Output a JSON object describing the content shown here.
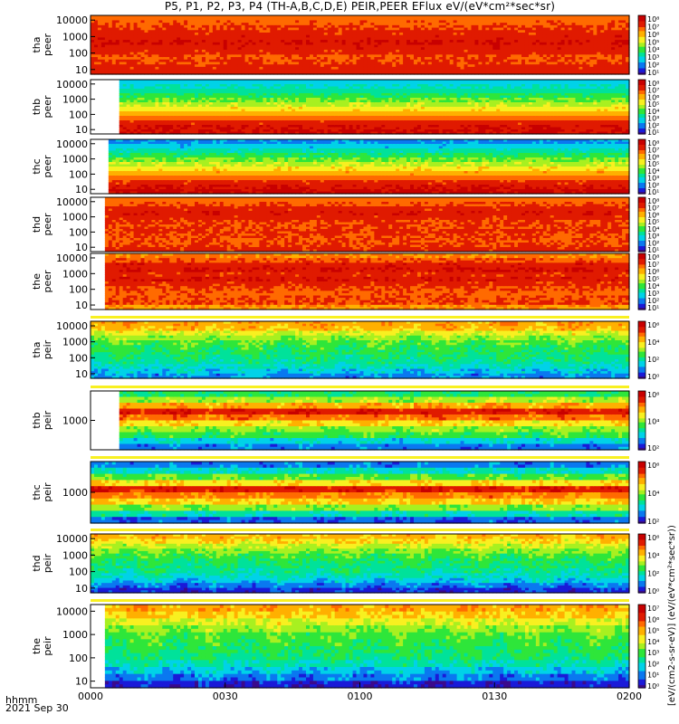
{
  "title": "P5, P1, P2, P3, P4 (TH-A,B,C,D,E) PEIR,PEER EFlux eV/(eV*cm²*sec*sr)",
  "footer": {
    "time_label": "hhmm",
    "date_label": "2021 Sep 30"
  },
  "colorbar_label": "[eV/(cm2-s-sr-eV)] (eV/(eV*cm²*sec*sr))",
  "colors": {
    "spectrum": [
      "#3b0a8c",
      "#1a1ad8",
      "#0a78f0",
      "#00d2e8",
      "#00e29a",
      "#2ee63a",
      "#a8f020",
      "#f8f020",
      "#ffb000",
      "#ff6a00",
      "#e01a00",
      "#c80000"
    ],
    "fill_flag": "#f8f020"
  },
  "chart_data": {
    "type": "heatmap",
    "x_axis": {
      "ticks": [
        "0000",
        "0030",
        "0100",
        "0130",
        "0200"
      ],
      "start": "0000",
      "end": "0200"
    },
    "panels": [
      {
        "id": "tha_peer",
        "probe": "tha",
        "species": "peer",
        "ylabel": [
          "tha",
          "peer"
        ],
        "yticks": [
          "10000",
          "1000",
          "100",
          "10"
        ],
        "cbar_ticks": [
          "10⁸",
          "10⁷",
          "10⁶",
          "10⁵",
          "10⁴",
          "10³",
          "10²",
          "10¹"
        ],
        "data_start": 0.0,
        "profile": [
          7.2,
          7.4,
          7.6,
          7.8,
          8.0,
          8.2,
          8.0,
          7.8,
          7.5,
          7.6,
          7.8,
          7.9
        ],
        "noise": 0.5,
        "floor": 0.0
      },
      {
        "id": "thb_peer",
        "probe": "thb",
        "species": "peer",
        "ylabel": [
          "thb",
          "peer"
        ],
        "yticks": [
          "10000",
          "1000",
          "100",
          "10"
        ],
        "cbar_ticks": [
          "10⁸",
          "10⁷",
          "10⁶",
          "10⁵",
          "10⁴",
          "10³",
          "10²",
          "10¹"
        ],
        "data_start": 0.058,
        "profile": [
          3.0,
          3.4,
          3.8,
          4.2,
          4.8,
          5.4,
          6.0,
          6.6,
          7.2,
          7.8,
          8.2,
          8.3
        ],
        "noise": 0.4,
        "floor": 0.0
      },
      {
        "id": "thc_peer",
        "probe": "thc",
        "species": "peer",
        "ylabel": [
          "thc",
          "peer"
        ],
        "yticks": [
          "10000",
          "1000",
          "100",
          "10"
        ],
        "cbar_ticks": [
          "10⁸",
          "10⁷",
          "10⁶",
          "10⁵",
          "10⁴",
          "10³",
          "10²",
          "10¹"
        ],
        "data_start": 0.035,
        "profile": [
          2.6,
          3.0,
          3.6,
          4.2,
          4.8,
          5.4,
          6.0,
          6.6,
          7.2,
          7.8,
          8.2,
          8.4
        ],
        "noise": 0.5,
        "floor": 0.0
      },
      {
        "id": "thd_peer",
        "probe": "thd",
        "species": "peer",
        "ylabel": [
          "thd",
          "peer"
        ],
        "yticks": [
          "10000",
          "1000",
          "100",
          "10"
        ],
        "cbar_ticks": [
          "10⁸",
          "10⁷",
          "10⁶",
          "10⁵",
          "10⁴",
          "10³",
          "10²",
          "10¹"
        ],
        "data_start": 0.028,
        "profile": [
          7.2,
          7.5,
          7.8,
          8.1,
          7.8,
          7.6,
          7.6,
          7.7,
          7.6,
          7.5,
          7.6,
          7.8
        ],
        "noise": 0.5,
        "floor": 0.0
      },
      {
        "id": "the_peer",
        "probe": "the",
        "species": "peer",
        "ylabel": [
          "the",
          "peer"
        ],
        "yticks": [
          "10000",
          "1000",
          "100",
          "10"
        ],
        "cbar_ticks": [
          "10⁸",
          "10⁷",
          "10⁶",
          "10⁵",
          "10⁴",
          "10³",
          "10²",
          "10¹"
        ],
        "data_start": 0.028,
        "profile": [
          7.0,
          7.5,
          8.0,
          8.2,
          7.8,
          8.1,
          7.8,
          7.6,
          7.4,
          7.5,
          7.6,
          6.8
        ],
        "noise": 0.6,
        "floor": 0.0
      },
      {
        "id": "tha_peir",
        "probe": "tha",
        "species": "peir",
        "ylabel": [
          "tha",
          "peir"
        ],
        "yticks": [
          "10000",
          "1000",
          "100",
          "10"
        ],
        "cbar_ticks": [
          "10⁶",
          "10⁴",
          "10²",
          "10⁰"
        ],
        "data_start": 0.0,
        "profile": [
          6.6,
          6.4,
          5.6,
          5.0,
          4.6,
          4.3,
          4.2,
          4.0,
          3.8,
          3.4,
          3.0,
          2.6
        ],
        "noise": 0.8,
        "floor": 0.0
      },
      {
        "id": "thb_peir",
        "probe": "thb",
        "species": "peir",
        "ylabel": [
          "thb",
          "peir"
        ],
        "yticks": [
          "1000"
        ],
        "cbar_ticks": [
          "10⁶",
          "10⁴",
          "10²"
        ],
        "data_start": 0.058,
        "profile": [
          4.2,
          5.2,
          6.6,
          8.0,
          7.2,
          6.0,
          5.0,
          4.4,
          3.2,
          2.4
        ],
        "noise": 0.7,
        "floor": 0.0
      },
      {
        "id": "thc_peir",
        "probe": "thc",
        "species": "peir",
        "ylabel": [
          "thc",
          "peir"
        ],
        "yticks": [
          "1000"
        ],
        "cbar_ticks": [
          "10⁶",
          "10⁴",
          "10²"
        ],
        "data_start": 0.0,
        "profile": [
          2.4,
          3.4,
          4.6,
          6.0,
          8.0,
          7.0,
          6.2,
          5.0,
          3.6,
          2.2
        ],
        "noise": 0.7,
        "floor": 0.0
      },
      {
        "id": "thd_peir",
        "probe": "thd",
        "species": "peir",
        "ylabel": [
          "thd",
          "peir"
        ],
        "yticks": [
          "10000",
          "1000",
          "100",
          "10"
        ],
        "cbar_ticks": [
          "10⁶",
          "10⁴",
          "10²",
          "10⁰"
        ],
        "data_start": 0.0,
        "profile": [
          6.4,
          6.0,
          5.4,
          4.9,
          4.5,
          4.2,
          4.0,
          3.8,
          3.5,
          3.0,
          2.4,
          1.8
        ],
        "noise": 0.8,
        "floor": 0.0
      },
      {
        "id": "the_peir",
        "probe": "the",
        "species": "peir",
        "ylabel": [
          "the",
          "peir"
        ],
        "yticks": [
          "10000",
          "1000",
          "100",
          "10"
        ],
        "cbar_ticks": [
          "10⁷",
          "10⁶",
          "10⁵",
          "10⁴",
          "10³",
          "10²",
          "10¹",
          "10⁰"
        ],
        "data_start": 0.03,
        "profile": [
          6.6,
          6.2,
          5.6,
          5.0,
          4.6,
          4.4,
          4.2,
          4.0,
          3.6,
          3.0,
          2.4,
          1.6
        ],
        "noise": 0.8,
        "floor": 0.0
      }
    ]
  }
}
